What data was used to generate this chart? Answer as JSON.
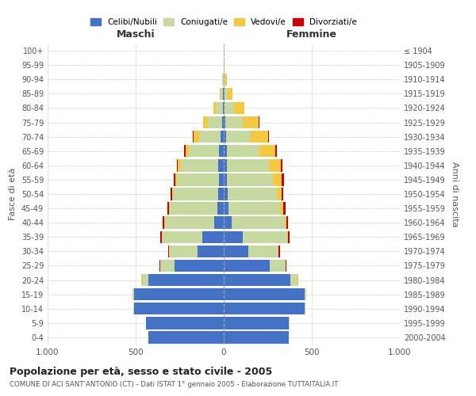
{
  "age_groups": [
    "0-4",
    "5-9",
    "10-14",
    "15-19",
    "20-24",
    "25-29",
    "30-34",
    "35-39",
    "40-44",
    "45-49",
    "50-54",
    "55-59",
    "60-64",
    "65-69",
    "70-74",
    "75-79",
    "80-84",
    "85-89",
    "90-94",
    "95-99",
    "100+"
  ],
  "birth_years": [
    "2000-2004",
    "1995-1999",
    "1990-1994",
    "1985-1989",
    "1980-1984",
    "1975-1979",
    "1970-1974",
    "1965-1969",
    "1960-1964",
    "1955-1959",
    "1950-1954",
    "1945-1949",
    "1940-1944",
    "1935-1939",
    "1930-1934",
    "1925-1929",
    "1920-1924",
    "1915-1919",
    "1910-1914",
    "1905-1909",
    "≤ 1904"
  ],
  "male_celibi": [
    430,
    440,
    510,
    510,
    430,
    280,
    150,
    120,
    55,
    35,
    30,
    28,
    30,
    28,
    20,
    10,
    5,
    3,
    2,
    0,
    0
  ],
  "male_coniugati": [
    0,
    2,
    3,
    10,
    35,
    80,
    160,
    230,
    280,
    270,
    260,
    240,
    215,
    170,
    120,
    80,
    40,
    15,
    5,
    2,
    0
  ],
  "male_vedovi": [
    0,
    0,
    0,
    0,
    2,
    2,
    2,
    3,
    3,
    5,
    5,
    8,
    15,
    20,
    30,
    25,
    15,
    5,
    3,
    0,
    0
  ],
  "male_divorziati": [
    0,
    0,
    0,
    0,
    2,
    3,
    5,
    8,
    8,
    12,
    8,
    10,
    8,
    8,
    5,
    2,
    0,
    0,
    0,
    0,
    0
  ],
  "female_celibi": [
    370,
    370,
    460,
    460,
    380,
    260,
    140,
    110,
    45,
    28,
    22,
    20,
    20,
    18,
    12,
    8,
    5,
    3,
    2,
    0,
    0
  ],
  "female_coniugati": [
    0,
    2,
    4,
    10,
    40,
    90,
    170,
    250,
    300,
    290,
    280,
    260,
    235,
    185,
    140,
    100,
    55,
    20,
    8,
    2,
    0
  ],
  "female_vedovi": [
    0,
    0,
    0,
    0,
    2,
    2,
    3,
    5,
    10,
    20,
    25,
    50,
    70,
    90,
    100,
    90,
    55,
    25,
    10,
    2,
    0
  ],
  "female_divorziati": [
    0,
    0,
    0,
    0,
    2,
    5,
    8,
    10,
    12,
    12,
    12,
    12,
    10,
    8,
    5,
    5,
    2,
    0,
    0,
    0,
    0
  ],
  "color_celibi": "#4472C4",
  "color_coniugati": "#c6d9a0",
  "color_vedovi": "#f5c842",
  "color_divorziati": "#cc0000",
  "title": "Popolazione per età, sesso e stato civile - 2005",
  "subtitle": "COMUNE DI ACI SANT'ANTONIO (CT) - Dati ISTAT 1° gennaio 2005 - Elaborazione TUTTAITALIA.IT",
  "xlabel_left": "Maschi",
  "xlabel_right": "Femmine",
  "ylabel_left": "Fasce di età",
  "ylabel_right": "Anni di nascita",
  "xlim": 1000,
  "bg_color": "#ffffff",
  "grid_color": "#cccccc"
}
